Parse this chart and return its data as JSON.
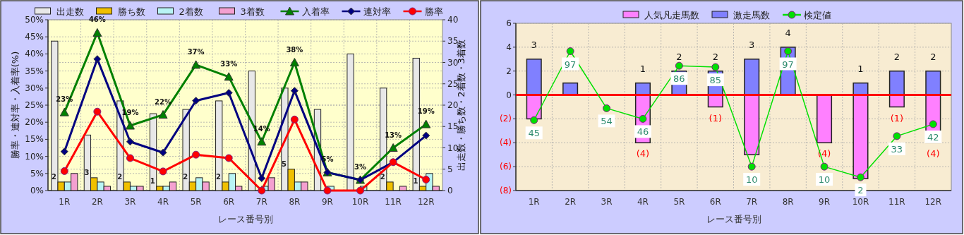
{
  "chart_data": [
    {
      "type": "bar",
      "legend": "top",
      "grid": true,
      "xlabel": "レース番号別",
      "ylabel": "勝率・連対率・入着率(%)",
      "y2label": "出走数・勝ち数・2着数・3着数",
      "categories": [
        "1R",
        "2R",
        "3R",
        "4R",
        "5R",
        "6R",
        "7R",
        "8R",
        "9R",
        "10R",
        "11R",
        "12R"
      ],
      "ylim": [
        0,
        50
      ],
      "yticks": [
        {
          "value": 0,
          "label": "0%"
        },
        {
          "value": 5,
          "label": "5%"
        },
        {
          "value": 10,
          "label": "10%"
        },
        {
          "value": 15,
          "label": "15%"
        },
        {
          "value": 20,
          "label": "20%"
        },
        {
          "value": 25,
          "label": "25%"
        },
        {
          "value": 30,
          "label": "30%"
        },
        {
          "value": 35,
          "label": "35%"
        },
        {
          "value": 40,
          "label": "40%"
        },
        {
          "value": 45,
          "label": "45%"
        },
        {
          "value": 50,
          "label": "50%"
        }
      ],
      "y2lim": [
        0,
        40
      ],
      "y2ticks": [
        0,
        5,
        10,
        15,
        20,
        25,
        30,
        35,
        40
      ],
      "series": [
        {
          "name": "出走数",
          "axis": "y2",
          "color": "#e8e8e8",
          "values": [
            35,
            13,
            21,
            18,
            19,
            21,
            28,
            24,
            19,
            32,
            24,
            31
          ]
        },
        {
          "name": "勝ち数",
          "axis": "y2",
          "color": "#f0c000",
          "values": [
            2,
            3,
            2,
            1,
            2,
            2,
            0,
            5,
            0,
            0,
            2,
            1
          ],
          "value_labels": [
            "2",
            "3",
            "2",
            "1",
            "2",
            "2",
            null,
            "5",
            null,
            null,
            "2",
            "1"
          ]
        },
        {
          "name": "2着数",
          "axis": "y2",
          "color": "#b8f4f4",
          "values": [
            2,
            2,
            1,
            1,
            3,
            4,
            1,
            2,
            1,
            1,
            0,
            4
          ]
        },
        {
          "name": "3着数",
          "axis": "y2",
          "color": "#f4a0d0",
          "values": [
            4,
            1,
            1,
            2,
            2,
            1,
            3,
            2,
            0,
            0,
            1,
            1
          ]
        },
        {
          "name": "入着率",
          "type": "line",
          "color": "#008000",
          "marker": "triangle",
          "values": [
            22.9,
            46.2,
            19.0,
            22.2,
            36.8,
            33.3,
            14.3,
            37.5,
            5.3,
            3.1,
            12.5,
            19.4
          ],
          "value_labels": [
            "23%",
            "46%",
            "19%",
            "22%",
            "37%",
            "33%",
            "14%",
            "38%",
            "5%",
            "3%",
            "13%",
            "19%"
          ]
        },
        {
          "name": "連対率",
          "type": "line",
          "color": "#000080",
          "marker": "diamond",
          "values": [
            11.4,
            38.5,
            14.3,
            11.1,
            26.3,
            28.6,
            3.6,
            29.2,
            5.3,
            3.1,
            8.3,
            16.1
          ]
        },
        {
          "name": "勝率",
          "type": "line",
          "color": "#ff0000",
          "marker": "circle",
          "values": [
            5.7,
            23.1,
            9.5,
            5.6,
            10.5,
            9.5,
            0,
            20.8,
            0,
            0,
            8.3,
            3.2
          ]
        }
      ]
    },
    {
      "type": "bar",
      "stacked": true,
      "legend": "top",
      "grid": true,
      "xlabel": "レース番号別",
      "categories": [
        "1R",
        "2R",
        "3R",
        "4R",
        "5R",
        "6R",
        "7R",
        "8R",
        "9R",
        "10R",
        "11R",
        "12R"
      ],
      "ylim": [
        -8,
        6
      ],
      "yticks": [
        {
          "value": -8,
          "label": "(8)"
        },
        {
          "value": -6,
          "label": "(6)"
        },
        {
          "value": -4,
          "label": "(4)"
        },
        {
          "value": -2,
          "label": "(2)"
        },
        0,
        2,
        4,
        6
      ],
      "y2lim": [
        -8,
        118
      ],
      "ref_lines": [
        {
          "axis": "y",
          "value": 0,
          "color": "#ff0000"
        }
      ],
      "series": [
        {
          "name": "人気凡走馬数",
          "color": "#ff80ff",
          "values": [
            -2,
            0,
            0,
            -4,
            0,
            -1,
            -5,
            0,
            -4,
            -7,
            -1,
            -4
          ],
          "value_labels": [
            null,
            null,
            null,
            "(4)",
            null,
            "(1)",
            null,
            null,
            "(4)",
            null,
            "(1)",
            "(4)"
          ]
        },
        {
          "name": "激走馬数",
          "color": "#8080ff",
          "values": [
            3,
            1,
            0,
            1,
            2,
            2,
            3,
            4,
            0,
            1,
            2,
            2
          ],
          "value_labels": [
            "3",
            null,
            null,
            "1",
            "2",
            "2",
            "3",
            "4",
            null,
            "1",
            "2",
            "2"
          ]
        },
        {
          "name": "検定値",
          "type": "line",
          "axis": "y2",
          "color": "#00e000",
          "marker": "circle",
          "values": [
            45,
            97,
            54,
            46,
            86,
            85,
            10,
            97,
            10,
            2,
            33,
            42
          ],
          "value_labels": [
            "45",
            "97",
            "54",
            "46",
            "86",
            "85",
            "10",
            "97",
            "10",
            "2",
            "33",
            "42"
          ]
        }
      ]
    }
  ]
}
